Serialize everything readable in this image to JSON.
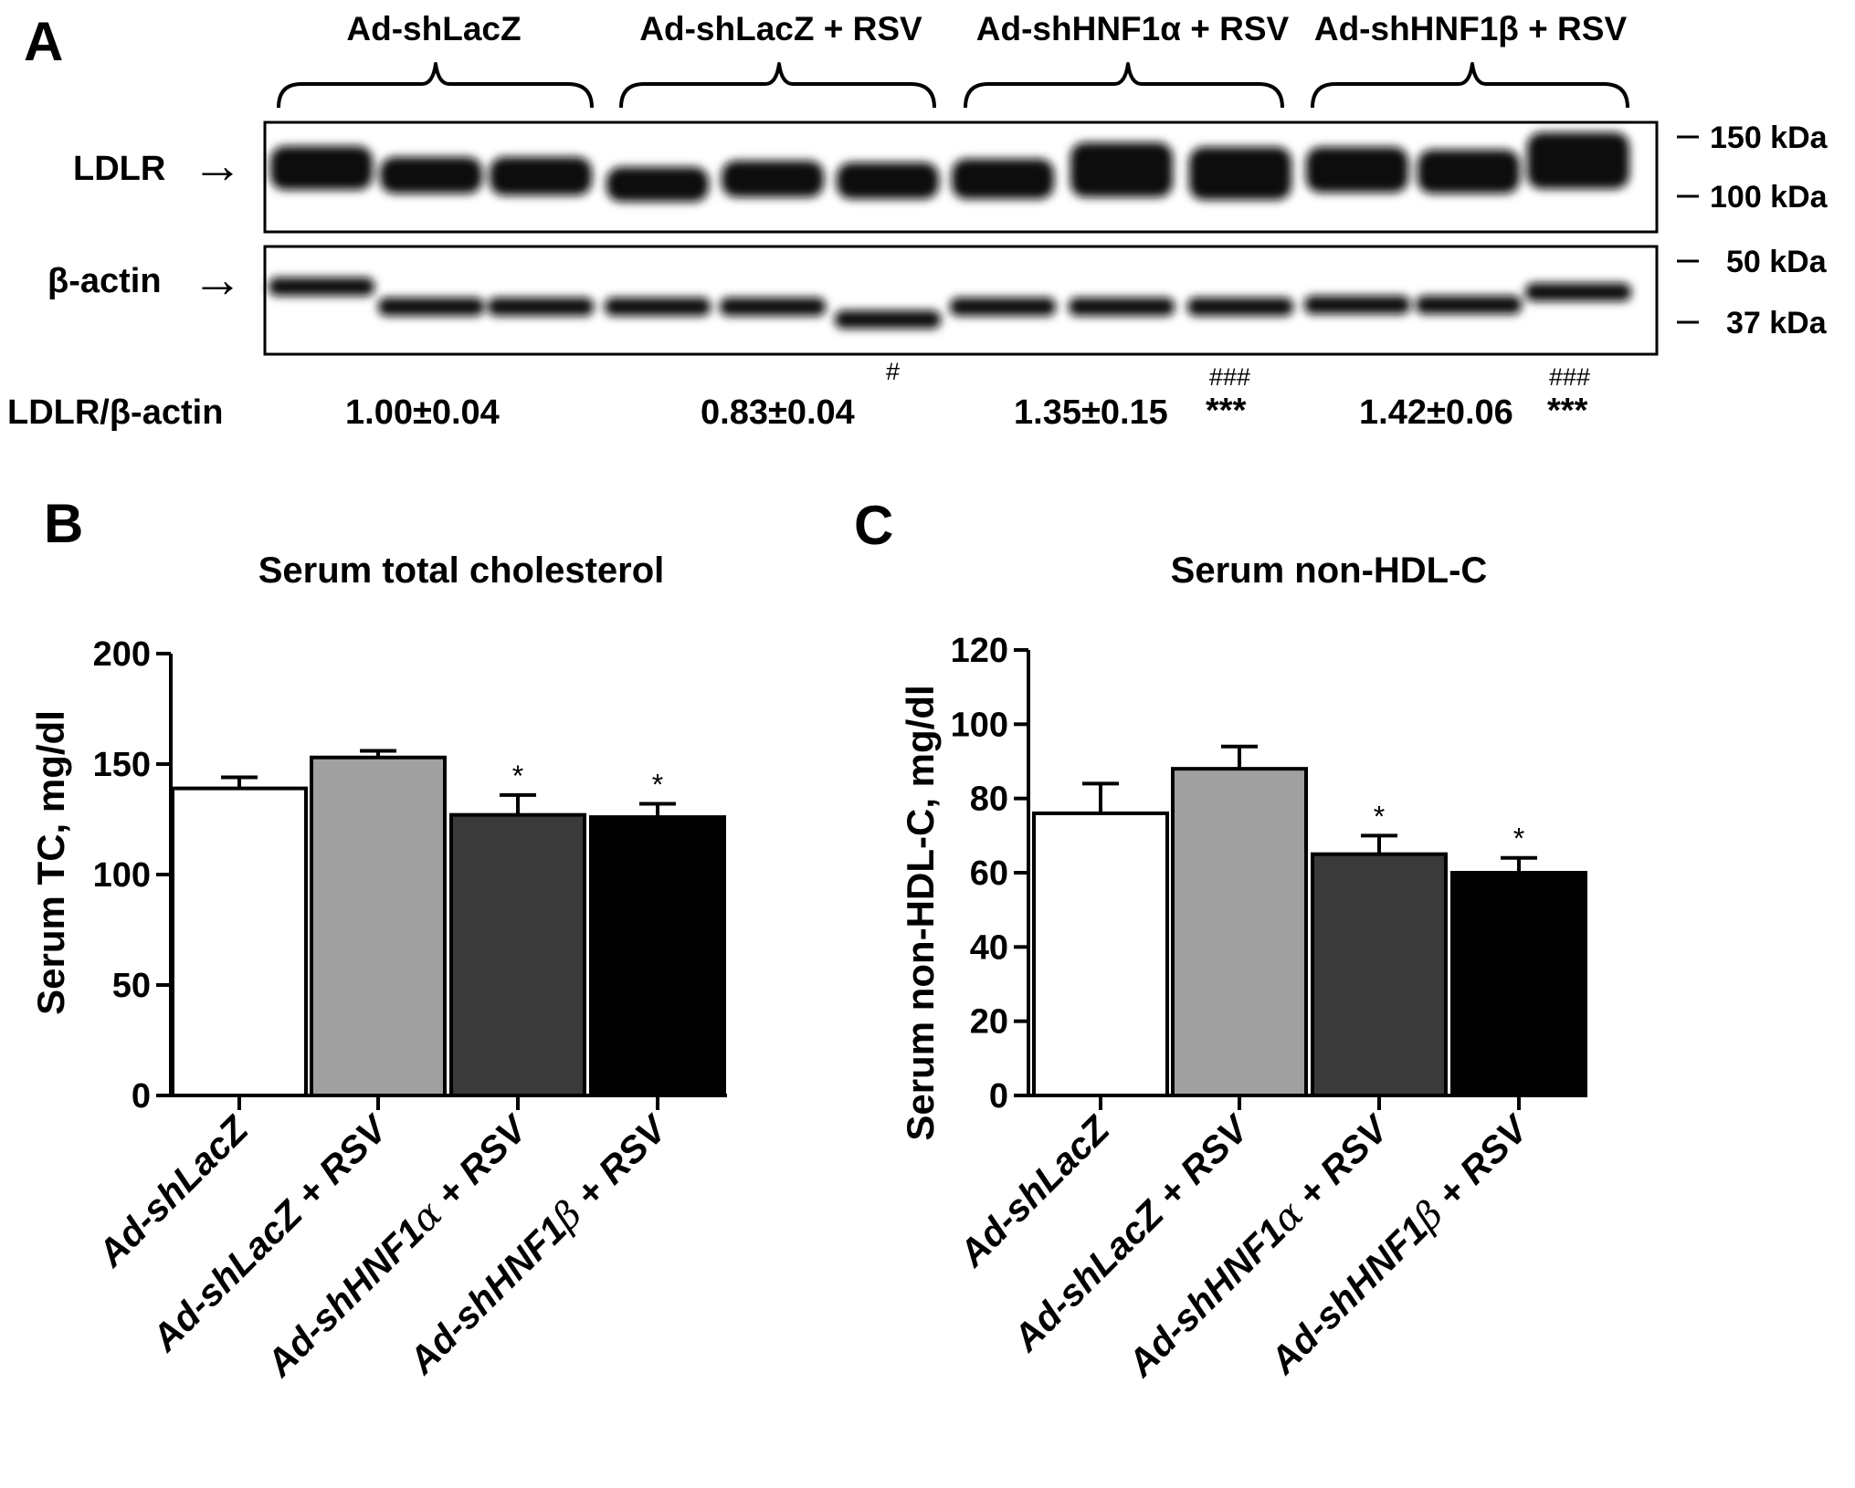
{
  "panel_labels": {
    "a": "A",
    "b": "B",
    "c": "C"
  },
  "blot": {
    "groups": [
      "Ad-shLacZ",
      "Ad-shLacZ + RSV",
      "Ad-shHNF1α + RSV",
      "Ad-shHNF1β + RSV"
    ],
    "row_labels": {
      "ldlr": "LDLR",
      "actin": "β-actin"
    },
    "arrow_glyph": "→",
    "markers": {
      "m150": "150 kDa",
      "m100": "100 kDa",
      "m50": "50 kDa",
      "m37": "37 kDa"
    },
    "ratio_label": "LDLR/β-actin",
    "ratios": [
      {
        "value": "1.00±0.04",
        "sig_top": "",
        "sig_side": ""
      },
      {
        "value": "0.83±0.04",
        "sig_top": "#",
        "sig_side": ""
      },
      {
        "value": "1.35±0.15",
        "sig_top": "###",
        "sig_side": "***"
      },
      {
        "value": "1.42±0.06",
        "sig_top": "###",
        "sig_side": "***"
      }
    ],
    "colors": {
      "band": "#111111",
      "background": "#ffffff"
    }
  },
  "chart_data": [
    {
      "type": "bar",
      "title": "Serum total cholesterol",
      "ylabel": "Serum TC, mg/dl",
      "xlabel": "",
      "ylim": [
        0,
        200
      ],
      "yticks": [
        "0",
        "50",
        "100",
        "150",
        "200"
      ],
      "categories": [
        {
          "pre": "Ad-sh",
          "it": "LacZ",
          "greek": "",
          "post": ""
        },
        {
          "pre": "Ad-sh",
          "it": "LacZ",
          "greek": "",
          "post": " + RSV"
        },
        {
          "pre": "Ad-shHNF1",
          "it": "",
          "greek": "α",
          "post": " + RSV"
        },
        {
          "pre": "Ad-shHNF1",
          "it": "",
          "greek": "β",
          "post": " + RSV"
        }
      ],
      "values": [
        139,
        153,
        127,
        126
      ],
      "errors": [
        5,
        3,
        9,
        6
      ],
      "significance": [
        "",
        "",
        "*",
        "*"
      ],
      "colors": [
        "#ffffff",
        "#a0a0a0",
        "#3a3a3a",
        "#000000"
      ]
    },
    {
      "type": "bar",
      "title": "Serum non-HDL-C",
      "ylabel": "Serum non-HDL-C, mg/dl",
      "xlabel": "",
      "ylim": [
        0,
        120
      ],
      "yticks": [
        "0",
        "20",
        "40",
        "60",
        "80",
        "100",
        "120"
      ],
      "categories": [
        {
          "pre": "Ad-sh",
          "it": "LacZ",
          "greek": "",
          "post": ""
        },
        {
          "pre": "Ad-sh",
          "it": "LacZ",
          "greek": "",
          "post": " + RSV"
        },
        {
          "pre": "Ad-shHNF1",
          "it": "",
          "greek": "α",
          "post": " + RSV"
        },
        {
          "pre": "Ad-shHNF1",
          "it": "",
          "greek": "β",
          "post": " + RSV"
        }
      ],
      "values": [
        76,
        88,
        65,
        60
      ],
      "errors": [
        8,
        6,
        5,
        4
      ],
      "significance": [
        "",
        "",
        "*",
        "*"
      ],
      "colors": [
        "#ffffff",
        "#a0a0a0",
        "#3a3a3a",
        "#000000"
      ]
    }
  ]
}
